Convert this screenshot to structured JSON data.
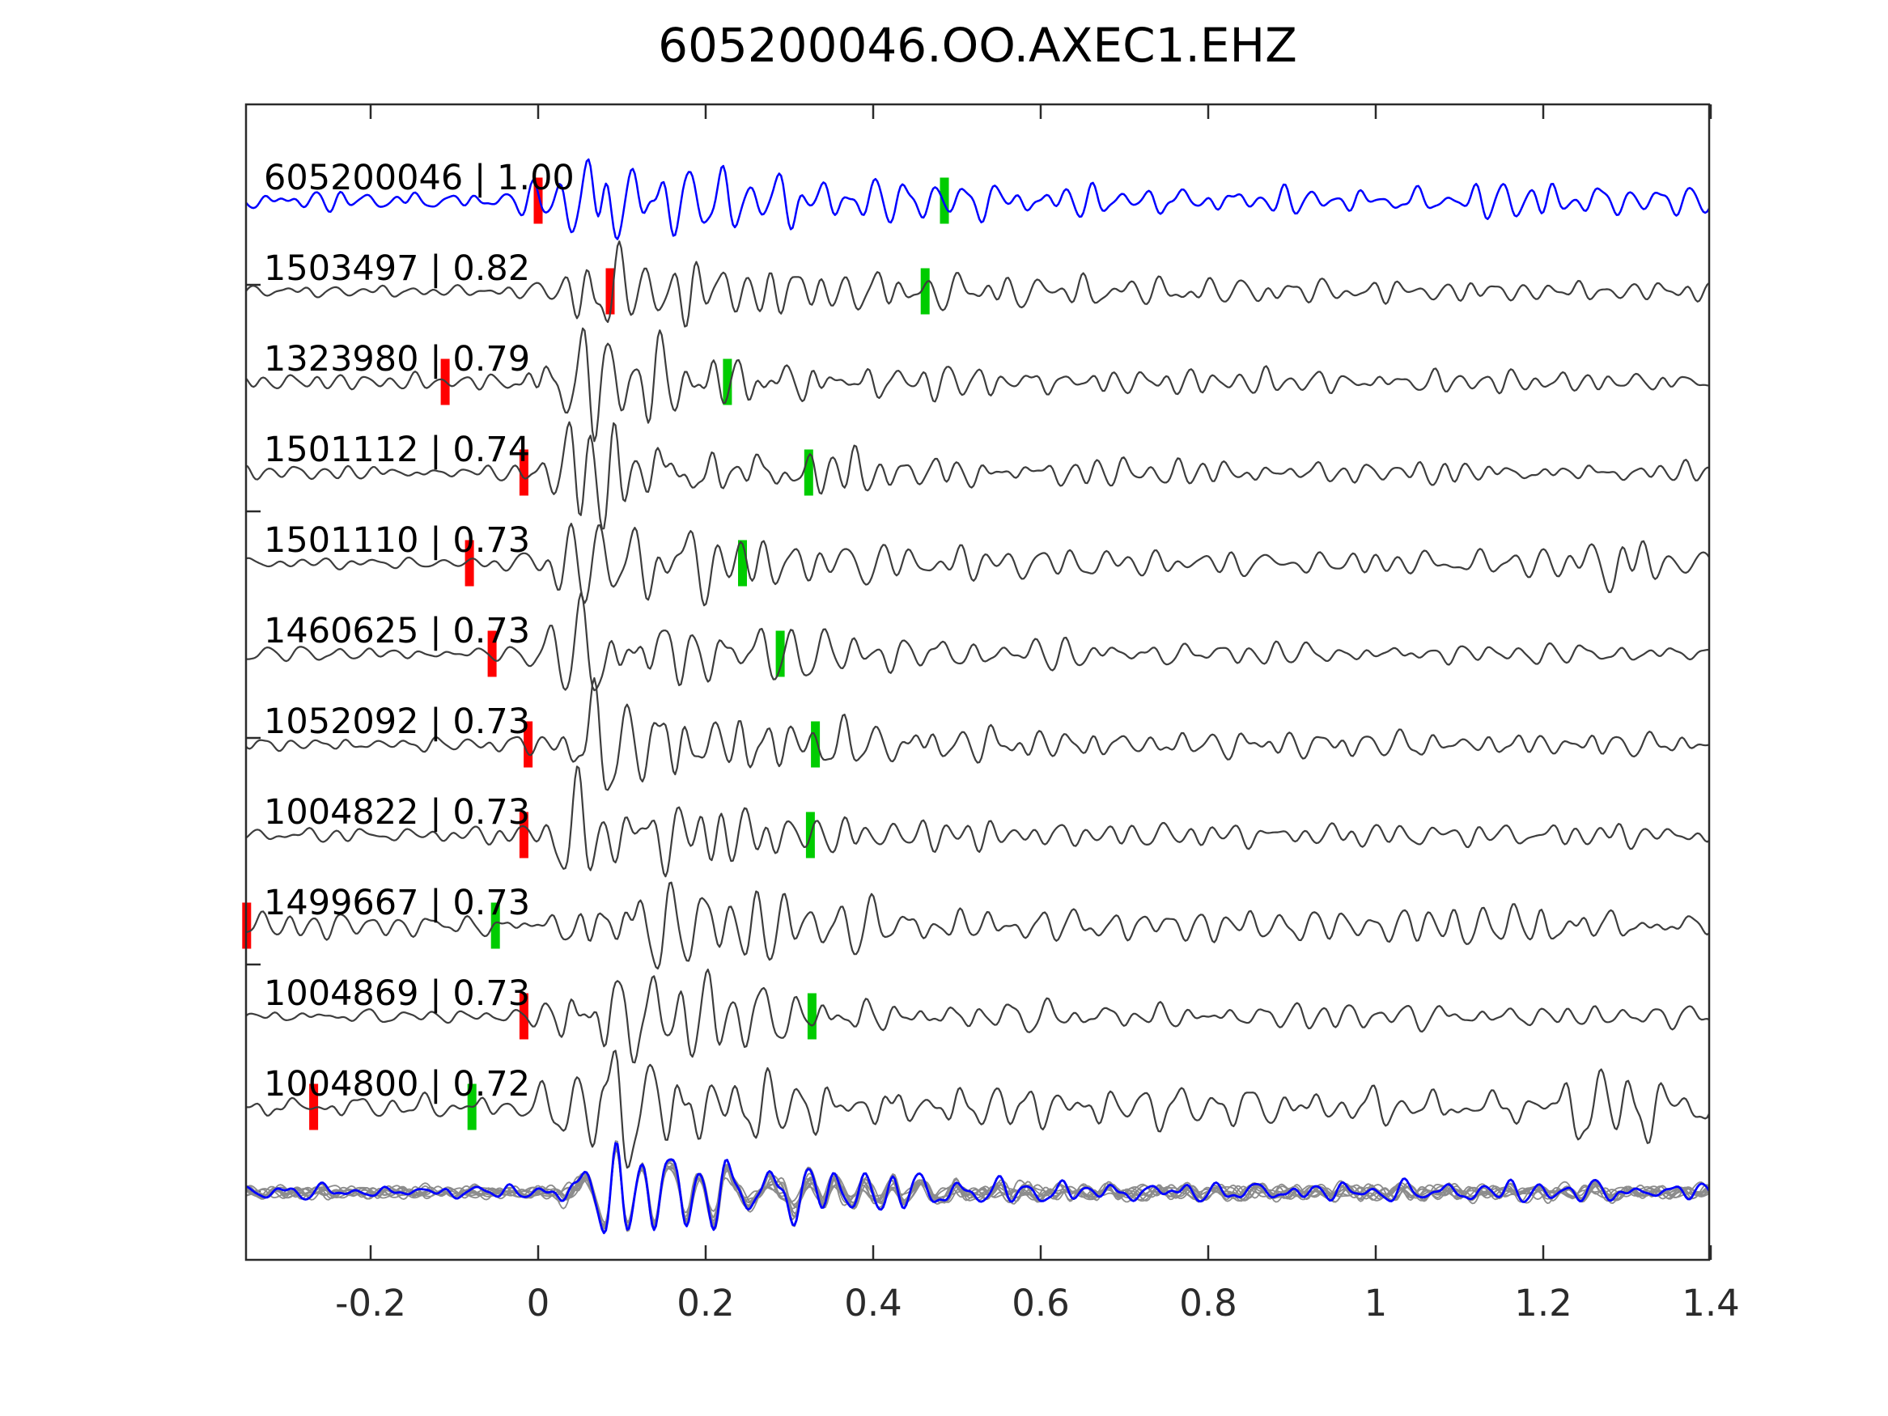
{
  "title": "605200046.OO.AXEC1.EHZ",
  "colors": {
    "template": "#0000ff",
    "trace": "#3d3d3d",
    "stack_gray": "#8c8c8c",
    "stack_template": "#0000ff",
    "pick_red": "#ff0000",
    "pick_green": "#00cc00",
    "spine": "#2a2a2a",
    "text": "#000000"
  },
  "chart_data": {
    "type": "line",
    "title": "605200046.OO.AXEC1.EHZ",
    "xlabel": "",
    "ylabel": "",
    "xlim": [
      -0.349,
      1.398
    ],
    "grid": false,
    "x_ticks": [
      {
        "value": -0.2,
        "label": "-0.2"
      },
      {
        "value": 0.0,
        "label": "0"
      },
      {
        "value": 0.2,
        "label": "0.2"
      },
      {
        "value": 0.4,
        "label": "0.4"
      },
      {
        "value": 0.6,
        "label": "0.6"
      },
      {
        "value": 0.8,
        "label": "0.8"
      },
      {
        "value": 1.0,
        "label": "1"
      },
      {
        "value": 1.2,
        "label": "1.2"
      },
      {
        "value": 1.4,
        "label": "1.4"
      }
    ],
    "traces": [
      {
        "label": "605200046 | 1.00",
        "id": "605200046",
        "correlation": 1.0,
        "role": "template",
        "red_pick": 0.0,
        "green_pick": 0.485,
        "waveform": {
          "seed": 11,
          "pre": 13,
          "peak": 45,
          "tp": 0.06,
          "tail": 17,
          "late": {
            "t": 1.17,
            "a": 10
          }
        }
      },
      {
        "label": "1503497 | 0.82",
        "id": "1503497",
        "correlation": 0.82,
        "role": "detection",
        "red_pick": 0.086,
        "green_pick": 0.462,
        "waveform": {
          "seed": 22,
          "pre": 7,
          "peak": 56,
          "tp": 0.08,
          "tail": 14,
          "late": null
        }
      },
      {
        "label": "1323980 | 0.79",
        "id": "1323980",
        "correlation": 0.79,
        "role": "detection",
        "red_pick": -0.111,
        "green_pick": 0.226,
        "waveform": {
          "seed": 33,
          "pre": 9,
          "peak": 60,
          "tp": 0.05,
          "tail": 13,
          "late": null
        }
      },
      {
        "label": "1501112 | 0.74",
        "id": "1501112",
        "correlation": 0.74,
        "role": "detection",
        "red_pick": -0.017,
        "green_pick": 0.323,
        "waveform": {
          "seed": 44,
          "pre": 8,
          "peak": 55,
          "tp": 0.06,
          "tail": 13,
          "late": null
        }
      },
      {
        "label": "1501110 | 0.73",
        "id": "1501110",
        "correlation": 0.73,
        "role": "detection",
        "red_pick": -0.082,
        "green_pick": 0.244,
        "waveform": {
          "seed": 55,
          "pre": 7,
          "peak": 57,
          "tp": 0.06,
          "tail": 15,
          "late": {
            "t": 1.27,
            "a": 22
          }
        }
      },
      {
        "label": "1460625 | 0.73",
        "id": "1460625",
        "correlation": 0.73,
        "role": "detection",
        "red_pick": -0.055,
        "green_pick": 0.289,
        "waveform": {
          "seed": 66,
          "pre": 8,
          "peak": 57,
          "tp": 0.07,
          "tail": 14,
          "late": null
        }
      },
      {
        "label": "1052092 | 0.73",
        "id": "1052092",
        "correlation": 0.73,
        "role": "detection",
        "red_pick": -0.012,
        "green_pick": 0.331,
        "waveform": {
          "seed": 77,
          "pre": 9,
          "peak": 55,
          "tp": 0.08,
          "tail": 15,
          "late": null
        }
      },
      {
        "label": "1004822 | 0.73",
        "id": "1004822",
        "correlation": 0.73,
        "role": "detection",
        "red_pick": -0.017,
        "green_pick": 0.325,
        "waveform": {
          "seed": 88,
          "pre": 9,
          "peak": 52,
          "tp": 0.05,
          "tail": 14,
          "late": null
        }
      },
      {
        "label": "1499667 | 0.73",
        "id": "1499667",
        "correlation": 0.73,
        "role": "detection",
        "red_pick": -0.348,
        "green_pick": -0.051,
        "waveform": {
          "seed": 99,
          "pre": 16,
          "peak": 42,
          "tp": 0.09,
          "tail": 20,
          "late": {
            "t": 1.2,
            "a": 14
          }
        }
      },
      {
        "label": "1004869 | 0.73",
        "id": "1004869",
        "correlation": 0.73,
        "role": "detection",
        "red_pick": -0.017,
        "green_pick": 0.327,
        "waveform": {
          "seed": 110,
          "pre": 8,
          "peak": 55,
          "tp": 0.07,
          "tail": 14,
          "late": null
        }
      },
      {
        "label": "1004800 | 0.72",
        "id": "1004800",
        "correlation": 0.72,
        "role": "detection",
        "red_pick": -0.268,
        "green_pick": -0.079,
        "waveform": {
          "seed": 121,
          "pre": 14,
          "peak": 58,
          "tp": 0.08,
          "tail": 22,
          "late": {
            "t": 1.28,
            "a": 28
          }
        }
      }
    ],
    "stack": {
      "description": "overlay of all detection waveforms (gray) with template (blue)",
      "gray_count": 10,
      "waveform": {
        "seed": 7,
        "pre": 10,
        "peak": 57,
        "tp": 0.1,
        "tail": 12,
        "late": null
      }
    }
  }
}
